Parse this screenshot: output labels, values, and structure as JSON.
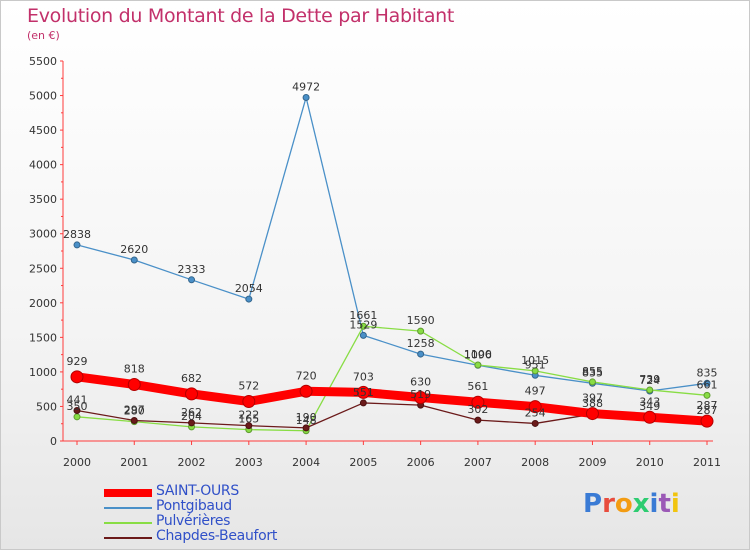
{
  "chart_data": {
    "type": "line",
    "title": "Evolution du Montant de la Dette par Habitant",
    "subtitle": "(en €)",
    "x": [
      "2000",
      "2001",
      "2002",
      "2003",
      "2004",
      "2005",
      "2006",
      "2007",
      "2008",
      "2009",
      "2010",
      "2011"
    ],
    "ylim": [
      0,
      5500
    ],
    "yticks": [
      0,
      500,
      1000,
      1500,
      2000,
      2500,
      3000,
      3500,
      4000,
      4500,
      5000,
      5500
    ],
    "grid": false,
    "legend_position": "bottom-left",
    "series": [
      {
        "name": "SAINT-OURS",
        "color": "#ff0000",
        "values": [
          929,
          818,
          682,
          572,
          720,
          703,
          630,
          561,
          497,
          397,
          343,
          287
        ]
      },
      {
        "name": "Pontgibaud",
        "color": "#4a90c8",
        "values": [
          2838,
          2620,
          2333,
          2054,
          4972,
          1529,
          1258,
          1096,
          951,
          835,
          724,
          835
        ]
      },
      {
        "name": "Pulvérières",
        "color": "#88dd44",
        "values": [
          350,
          280,
          204,
          165,
          148,
          1661,
          1590,
          1100,
          1015,
          855,
          739,
          661
        ]
      },
      {
        "name": "Chapdes-Beaufort",
        "color": "#6b1a1a",
        "values": [
          441,
          297,
          262,
          222,
          190,
          551,
          519,
          302,
          254,
          388,
          349,
          287
        ]
      }
    ]
  },
  "logo": {
    "text": "Proxiti",
    "colors": [
      "#3a7bd5",
      "#e84c3d",
      "#f39c12",
      "#2ecc71",
      "#3a7bd5",
      "#9b59b6",
      "#f1c40f"
    ]
  }
}
